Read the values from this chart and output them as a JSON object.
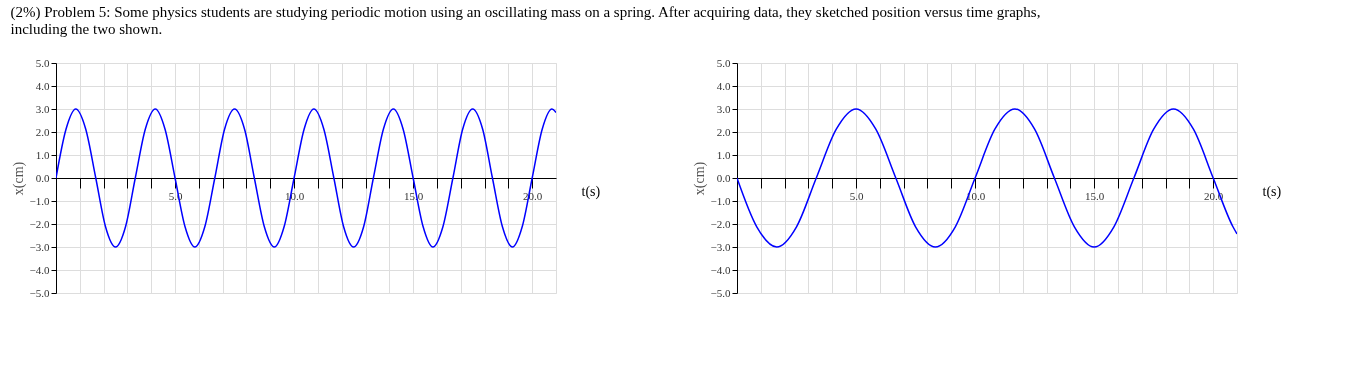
{
  "chart_data": [
    {
      "type": "line",
      "title": "(2%) Problem 5: Some physics students are studying periodic motion using an oscillating mass on a spring. After acquiring data, they sketched position versus time graphs, including the two shown.",
      "xlabel": "t(s)",
      "ylabel": "x(cm)",
      "grid": true,
      "marker": "none",
      "line_style": "solid",
      "xlim": [
        0,
        21
      ],
      "ylim": [
        -5,
        5
      ],
      "xticks": [
        {
          "value": 1,
          "label": null
        },
        {
          "value": 2,
          "label": null
        },
        {
          "value": 3,
          "label": null
        },
        {
          "value": 4,
          "label": null
        },
        {
          "value": 5,
          "label": "5.0"
        },
        {
          "value": 6,
          "label": null
        },
        {
          "value": 7,
          "label": null
        },
        {
          "value": 8,
          "label": null
        },
        {
          "value": 9,
          "label": null
        },
        {
          "value": 10,
          "label": "10.0"
        },
        {
          "value": 11,
          "label": null
        },
        {
          "value": 12,
          "label": null
        },
        {
          "value": 13,
          "label": null
        },
        {
          "value": 14,
          "label": null
        },
        {
          "value": 15,
          "label": "15.0"
        },
        {
          "value": 16,
          "label": null
        },
        {
          "value": 17,
          "label": null
        },
        {
          "value": 18,
          "label": null
        },
        {
          "value": 19,
          "label": null
        },
        {
          "value": 20,
          "label": "20.0"
        }
      ],
      "yticks": [
        {
          "value": -5,
          "label": "−5.0"
        },
        {
          "value": -4,
          "label": "−4.0"
        },
        {
          "value": -3,
          "label": "−3.0"
        },
        {
          "value": -2,
          "label": "−2.0"
        },
        {
          "value": -1,
          "label": "−1.0"
        },
        {
          "value": 0,
          "label": "0.0"
        },
        {
          "value": 1,
          "label": "1.0"
        },
        {
          "value": 2,
          "label": "2.0"
        },
        {
          "value": 3,
          "label": "3.0"
        },
        {
          "value": 4,
          "label": "4.0"
        },
        {
          "value": 5,
          "label": "5.0"
        }
      ],
      "x": [
        0,
        0.42,
        0.83,
        1.25,
        1.67,
        2.08,
        2.5,
        2.92,
        3.33,
        3.75,
        4.17,
        4.58,
        5,
        5.42,
        5.83,
        6.25,
        6.67,
        7.08,
        7.5,
        7.92,
        8.33,
        8.75,
        9.17,
        9.58,
        10,
        10.42,
        10.83,
        11.25,
        11.67,
        12.08,
        12.5,
        12.92,
        13.33,
        13.75,
        14.17,
        14.58,
        15,
        15.42,
        15.83,
        16.25,
        16.67,
        17.08,
        17.5,
        17.92,
        18.33,
        18.75,
        19.17,
        19.58,
        20,
        20.42,
        20.83,
        21
      ],
      "series": [
        {
          "color": "#0000ff",
          "values": [
            0,
            2.12,
            3,
            2.12,
            0,
            -2.12,
            -3,
            -2.12,
            0,
            2.12,
            3,
            2.12,
            0,
            -2.12,
            -3,
            -2.12,
            0,
            2.12,
            3,
            2.12,
            0,
            -2.12,
            -3,
            -2.12,
            0,
            2.12,
            3,
            2.12,
            0,
            -2.12,
            -3,
            -2.12,
            0,
            2.12,
            3,
            2.12,
            0,
            -2.12,
            -3,
            -2.12,
            0,
            2.12,
            3,
            2.12,
            0,
            -2.12,
            -3,
            -2.12,
            0,
            2.12,
            3,
            2.85
          ]
        }
      ]
    },
    {
      "type": "line",
      "xlabel": "t(s)",
      "ylabel": "x(cm)",
      "grid": true,
      "marker": "none",
      "line_style": "solid",
      "xlim": [
        0,
        21
      ],
      "ylim": [
        -5,
        5
      ],
      "xticks": [
        {
          "value": 1,
          "label": null
        },
        {
          "value": 2,
          "label": null
        },
        {
          "value": 3,
          "label": null
        },
        {
          "value": 4,
          "label": null
        },
        {
          "value": 5,
          "label": "5.0"
        },
        {
          "value": 6,
          "label": null
        },
        {
          "value": 7,
          "label": null
        },
        {
          "value": 8,
          "label": null
        },
        {
          "value": 9,
          "label": null
        },
        {
          "value": 10,
          "label": "10.0"
        },
        {
          "value": 11,
          "label": null
        },
        {
          "value": 12,
          "label": null
        },
        {
          "value": 13,
          "label": null
        },
        {
          "value": 14,
          "label": null
        },
        {
          "value": 15,
          "label": "15.0"
        },
        {
          "value": 16,
          "label": null
        },
        {
          "value": 17,
          "label": null
        },
        {
          "value": 18,
          "label": null
        },
        {
          "value": 19,
          "label": null
        },
        {
          "value": 20,
          "label": "20.0"
        }
      ],
      "yticks": [
        {
          "value": -5,
          "label": "−5.0"
        },
        {
          "value": -4,
          "label": "−4.0"
        },
        {
          "value": -3,
          "label": "−3.0"
        },
        {
          "value": -2,
          "label": "−2.0"
        },
        {
          "value": -1,
          "label": "−1.0"
        },
        {
          "value": 0,
          "label": "0.0"
        },
        {
          "value": 1,
          "label": "1.0"
        },
        {
          "value": 2,
          "label": "2.0"
        },
        {
          "value": 3,
          "label": "3.0"
        },
        {
          "value": 4,
          "label": "4.0"
        },
        {
          "value": 5,
          "label": "5.0"
        }
      ],
      "x": [
        0,
        0.83,
        1.67,
        2.5,
        3.33,
        4.17,
        5,
        5.83,
        6.67,
        7.5,
        8.33,
        9.17,
        10,
        10.83,
        11.67,
        12.5,
        13.33,
        14.17,
        15,
        15.83,
        16.67,
        17.5,
        18.33,
        19.17,
        20,
        20.83,
        21
      ],
      "series": [
        {
          "color": "#0000ff",
          "values": [
            0,
            -2.12,
            -3,
            -2.12,
            0,
            2.12,
            3,
            2.12,
            0,
            -2.12,
            -3,
            -2.12,
            0,
            2.12,
            3,
            2.12,
            0,
            -2.12,
            -3,
            -2.12,
            0,
            2.12,
            3,
            2.12,
            0,
            -2.12,
            -2.43
          ]
        }
      ]
    }
  ]
}
